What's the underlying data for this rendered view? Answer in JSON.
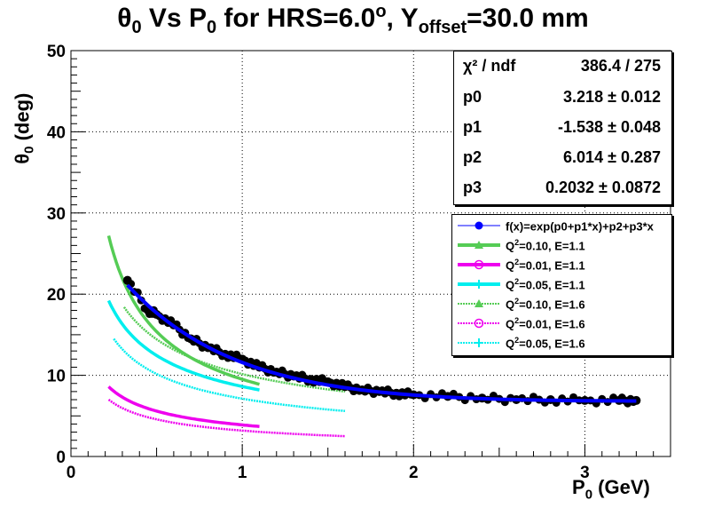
{
  "chart_data": {
    "type": "scatter",
    "title_theta": "θ",
    "title_sub": "0",
    "title_mid": " Vs P",
    "title_sub2": "0",
    "title_rest": " for HRS=6.0",
    "title_deg": "o",
    "title_rest2": ", Y",
    "title_sub3": "offset",
    "title_end": "=30.0 mm",
    "ylabel_main": "θ",
    "ylabel_sub": "0",
    "ylabel_unit": " (deg)",
    "xlabel_main": "P",
    "xlabel_sub": "0",
    "xlabel_unit": " (GeV)",
    "xlim": [
      0,
      3.5
    ],
    "ylim": [
      0,
      50
    ],
    "x_major_ticks": [
      0,
      1,
      2,
      3
    ],
    "y_major_ticks": [
      0,
      10,
      20,
      30,
      40,
      50
    ],
    "x_tick_labels": [
      "0",
      "1",
      "2",
      "3"
    ],
    "y_tick_labels": [
      "0",
      "10",
      "20",
      "30",
      "40",
      "50"
    ],
    "grid": true,
    "fit": {
      "function": "f(x)=exp(p0+p1*x)+p2+p3*x",
      "p0": 3.218,
      "p1": -1.538,
      "p2": 6.014,
      "p3": 0.2032,
      "x_range": [
        0.33,
        3.3
      ]
    },
    "stats": [
      {
        "key": "χ² / ndf",
        "value": "386.4 / 275"
      },
      {
        "key": "p0",
        "value": "3.218 ± 0.012"
      },
      {
        "key": "p1",
        "value": "-1.538 ± 0.048"
      },
      {
        "key": "p2",
        "value": "6.014 ± 0.287"
      },
      {
        "key": "p3",
        "value": "0.2032 ± 0.0872"
      }
    ],
    "series": [
      {
        "name": "f(x)=exp(p0+p1*x)+p2+p3*x",
        "color": "#0000ff",
        "style": "fit",
        "points": [
          [
            0.33,
            21.7
          ],
          [
            0.45,
            18.0
          ],
          [
            0.5,
            17.5
          ],
          [
            0.6,
            16.2
          ],
          [
            0.7,
            14.5
          ],
          [
            0.8,
            13.4
          ],
          [
            0.9,
            12.6
          ],
          [
            1.0,
            12.0
          ],
          [
            1.1,
            11.0
          ],
          [
            1.2,
            10.4
          ],
          [
            1.3,
            9.9
          ],
          [
            1.4,
            9.5
          ],
          [
            1.5,
            9.2
          ],
          [
            1.6,
            8.6
          ],
          [
            1.7,
            8.2
          ],
          [
            1.8,
            8.0
          ],
          [
            1.9,
            7.8
          ],
          [
            2.0,
            7.6
          ],
          [
            2.2,
            7.4
          ],
          [
            2.4,
            7.2
          ],
          [
            2.6,
            7.0
          ],
          [
            2.8,
            7.0
          ],
          [
            3.0,
            6.9
          ],
          [
            3.2,
            6.9
          ],
          [
            3.3,
            6.9
          ]
        ]
      },
      {
        "name": "Q2=0.10, E=1.1",
        "color": "#55cc55",
        "style": "solid",
        "x": [
          0.22,
          1.1
        ],
        "y": [
          27.2,
          8.9
        ]
      },
      {
        "name": "Q2=0.01, E=1.1",
        "color": "#ee00ee",
        "style": "solid",
        "x": [
          0.22,
          1.1
        ],
        "y": [
          8.6,
          3.7
        ]
      },
      {
        "name": "Q2=0.05, E=1.1",
        "color": "#00eeee",
        "style": "solid",
        "x": [
          0.22,
          1.1
        ],
        "y": [
          19.2,
          8.2
        ]
      },
      {
        "name": "Q2=0.10, E=1.6",
        "color": "#55cc55",
        "style": "dashed",
        "x": [
          0.31,
          1.6
        ],
        "y": [
          18.4,
          8.0
        ]
      },
      {
        "name": "Q2=0.01, E=1.6",
        "color": "#ee00ee",
        "style": "dashed",
        "x": [
          0.22,
          1.6
        ],
        "y": [
          7.0,
          2.5
        ]
      },
      {
        "name": "Q2=0.05, E=1.6",
        "color": "#00eeee",
        "style": "dashed",
        "x": [
          0.25,
          1.6
        ],
        "y": [
          14.5,
          5.6
        ]
      }
    ],
    "legend": [
      {
        "label_pre": "f(x)=exp(p0+p1*x)+p2+p3*x",
        "label_sup": "",
        "label_post": "",
        "color": "#0000ff",
        "marker": "dot",
        "style": "thin"
      },
      {
        "label_pre": "Q",
        "label_sup": "2",
        "label_post": "=0.10, E=1.1",
        "color": "#55cc55",
        "marker": "triangle",
        "style": "thick"
      },
      {
        "label_pre": "Q",
        "label_sup": "2",
        "label_post": "=0.01, E=1.1",
        "color": "#ee00ee",
        "marker": "circle",
        "style": "thick"
      },
      {
        "label_pre": "Q",
        "label_sup": "2",
        "label_post": "=0.05, E=1.1",
        "color": "#00eeee",
        "marker": "cross",
        "style": "thick"
      },
      {
        "label_pre": "Q",
        "label_sup": "2",
        "label_post": "=0.10, E=1.6",
        "color": "#55cc55",
        "marker": "triangle",
        "style": "dashed"
      },
      {
        "label_pre": "Q",
        "label_sup": "2",
        "label_post": "=0.01, E=1.6",
        "color": "#ee00ee",
        "marker": "circle",
        "style": "dashed"
      },
      {
        "label_pre": "Q",
        "label_sup": "2",
        "label_post": "=0.05, E=1.6",
        "color": "#00eeee",
        "marker": "cross",
        "style": "dashed"
      }
    ]
  }
}
